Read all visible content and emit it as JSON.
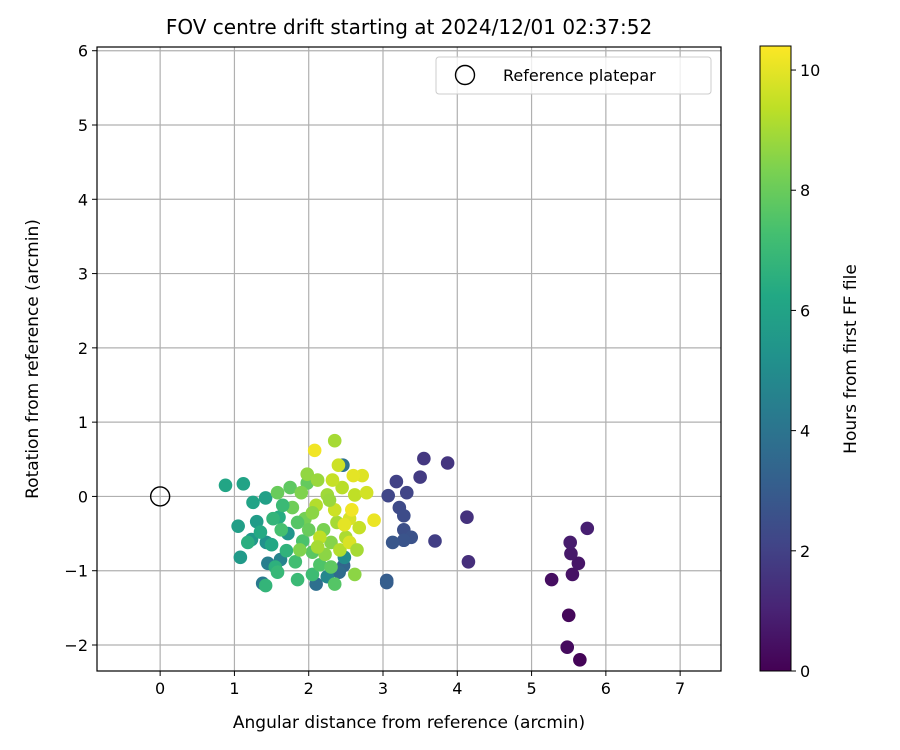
{
  "chart_data": {
    "type": "scatter",
    "title": "FOV centre drift starting at 2024/12/01 02:37:52",
    "xlabel": "Angular distance from reference (arcmin)",
    "ylabel": "Rotation from reference (arcmin)",
    "xlim": [
      -0.85,
      7.55
    ],
    "ylim": [
      -2.35,
      6.05
    ],
    "xticks": [
      0,
      1,
      2,
      3,
      4,
      5,
      6,
      7
    ],
    "yticks": [
      -2,
      -1,
      0,
      1,
      2,
      3,
      4,
      5,
      6
    ],
    "grid": true,
    "legend": {
      "position": "top-right",
      "entries": [
        "Reference platepar"
      ]
    },
    "reference_point": {
      "x": 0,
      "y": 0,
      "label": "Reference platepar"
    },
    "colorbar": {
      "label": "Hours from first FF file",
      "colormap": "viridis",
      "range": [
        0,
        10.4
      ],
      "ticks": [
        0,
        2,
        4,
        6,
        8,
        10
      ]
    },
    "points": [
      {
        "x": 5.5,
        "y": -1.6,
        "h": 0.2
      },
      {
        "x": 5.65,
        "y": -2.2,
        "h": 0.1
      },
      {
        "x": 5.48,
        "y": -2.03,
        "h": 0.3
      },
      {
        "x": 5.27,
        "y": -1.12,
        "h": 0.4
      },
      {
        "x": 5.55,
        "y": -1.05,
        "h": 0.5
      },
      {
        "x": 5.63,
        "y": -0.9,
        "h": 0.6
      },
      {
        "x": 5.53,
        "y": -0.77,
        "h": 0.7
      },
      {
        "x": 5.52,
        "y": -0.62,
        "h": 0.8
      },
      {
        "x": 5.75,
        "y": -0.43,
        "h": 0.9
      },
      {
        "x": 4.15,
        "y": -0.88,
        "h": 1.4
      },
      {
        "x": 4.13,
        "y": -0.28,
        "h": 1.5
      },
      {
        "x": 3.87,
        "y": 0.45,
        "h": 1.6
      },
      {
        "x": 3.55,
        "y": 0.51,
        "h": 1.7
      },
      {
        "x": 3.5,
        "y": 0.26,
        "h": 1.8
      },
      {
        "x": 3.7,
        "y": -0.6,
        "h": 1.9
      },
      {
        "x": 3.18,
        "y": 0.2,
        "h": 2.0
      },
      {
        "x": 3.32,
        "y": 0.05,
        "h": 2.1
      },
      {
        "x": 3.07,
        "y": 0.01,
        "h": 2.2
      },
      {
        "x": 3.22,
        "y": -0.15,
        "h": 2.3
      },
      {
        "x": 3.28,
        "y": -0.26,
        "h": 2.4
      },
      {
        "x": 3.28,
        "y": -0.45,
        "h": 2.5
      },
      {
        "x": 3.38,
        "y": -0.55,
        "h": 2.6
      },
      {
        "x": 3.28,
        "y": -0.59,
        "h": 2.7
      },
      {
        "x": 3.13,
        "y": -0.62,
        "h": 2.8
      },
      {
        "x": 3.05,
        "y": -1.13,
        "h": 3.0
      },
      {
        "x": 3.05,
        "y": -1.16,
        "h": 3.1
      },
      {
        "x": 2.47,
        "y": -0.93,
        "h": 3.4
      },
      {
        "x": 2.41,
        "y": -1.02,
        "h": 3.6
      },
      {
        "x": 2.1,
        "y": -1.18,
        "h": 3.8
      },
      {
        "x": 2.46,
        "y": 0.42,
        "h": 3.9
      },
      {
        "x": 1.38,
        "y": -1.17,
        "h": 4.2
      },
      {
        "x": 1.45,
        "y": -0.9,
        "h": 4.4
      },
      {
        "x": 1.62,
        "y": -0.85,
        "h": 4.6
      },
      {
        "x": 2.25,
        "y": -1.08,
        "h": 4.8
      },
      {
        "x": 2.48,
        "y": -0.82,
        "h": 5.0
      },
      {
        "x": 1.43,
        "y": -0.62,
        "h": 5.2
      },
      {
        "x": 1.72,
        "y": -0.5,
        "h": 5.4
      },
      {
        "x": 1.23,
        "y": -0.58,
        "h": 5.5
      },
      {
        "x": 1.08,
        "y": -0.82,
        "h": 5.6
      },
      {
        "x": 1.3,
        "y": -0.34,
        "h": 5.7
      },
      {
        "x": 1.05,
        "y": -0.4,
        "h": 5.8
      },
      {
        "x": 1.42,
        "y": -0.02,
        "h": 5.9
      },
      {
        "x": 1.25,
        "y": -0.08,
        "h": 6.0
      },
      {
        "x": 1.12,
        "y": 0.17,
        "h": 6.0
      },
      {
        "x": 0.88,
        "y": 0.15,
        "h": 6.1
      },
      {
        "x": 1.5,
        "y": -0.65,
        "h": 6.2
      },
      {
        "x": 1.35,
        "y": -0.48,
        "h": 6.3
      },
      {
        "x": 1.6,
        "y": -0.28,
        "h": 6.4
      },
      {
        "x": 1.18,
        "y": -0.62,
        "h": 6.5
      },
      {
        "x": 1.55,
        "y": -0.95,
        "h": 6.6
      },
      {
        "x": 1.7,
        "y": -0.73,
        "h": 6.7
      },
      {
        "x": 1.42,
        "y": -1.2,
        "h": 6.8
      },
      {
        "x": 1.58,
        "y": -1.02,
        "h": 6.9
      },
      {
        "x": 1.85,
        "y": -1.12,
        "h": 7.0
      },
      {
        "x": 2.05,
        "y": -1.05,
        "h": 7.1
      },
      {
        "x": 1.82,
        "y": -0.88,
        "h": 7.2
      },
      {
        "x": 1.63,
        "y": -0.45,
        "h": 7.3
      },
      {
        "x": 1.92,
        "y": -0.6,
        "h": 7.4
      },
      {
        "x": 2.15,
        "y": -0.92,
        "h": 7.5
      },
      {
        "x": 2.35,
        "y": -1.18,
        "h": 7.6
      },
      {
        "x": 2.05,
        "y": -0.75,
        "h": 7.7
      },
      {
        "x": 1.75,
        "y": 0.12,
        "h": 7.8
      },
      {
        "x": 1.98,
        "y": 0.18,
        "h": 7.9
      },
      {
        "x": 1.58,
        "y": 0.05,
        "h": 8.0
      },
      {
        "x": 1.78,
        "y": -0.15,
        "h": 8.1
      },
      {
        "x": 1.95,
        "y": -0.3,
        "h": 8.2
      },
      {
        "x": 2.2,
        "y": -0.45,
        "h": 8.3
      },
      {
        "x": 1.88,
        "y": -0.72,
        "h": 8.4
      },
      {
        "x": 2.3,
        "y": -0.62,
        "h": 8.5
      },
      {
        "x": 2.62,
        "y": -1.05,
        "h": 8.6
      },
      {
        "x": 1.98,
        "y": 0.3,
        "h": 8.7
      },
      {
        "x": 2.12,
        "y": 0.22,
        "h": 8.8
      },
      {
        "x": 2.25,
        "y": 0.02,
        "h": 8.9
      },
      {
        "x": 2.38,
        "y": -0.35,
        "h": 9.0
      },
      {
        "x": 2.5,
        "y": -0.55,
        "h": 9.1
      },
      {
        "x": 2.1,
        "y": -0.12,
        "h": 9.2
      },
      {
        "x": 2.45,
        "y": 0.12,
        "h": 9.3
      },
      {
        "x": 2.62,
        "y": 0.02,
        "h": 9.4
      },
      {
        "x": 2.68,
        "y": -0.42,
        "h": 9.5
      },
      {
        "x": 2.35,
        "y": -0.18,
        "h": 9.6
      },
      {
        "x": 2.78,
        "y": 0.05,
        "h": 9.7
      },
      {
        "x": 2.55,
        "y": -0.3,
        "h": 9.8
      },
      {
        "x": 2.72,
        "y": 0.28,
        "h": 9.9
      },
      {
        "x": 2.6,
        "y": 0.28,
        "h": 10.0
      },
      {
        "x": 2.88,
        "y": -0.32,
        "h": 10.1
      },
      {
        "x": 2.08,
        "y": 0.62,
        "h": 10.2
      },
      {
        "x": 2.35,
        "y": 0.75,
        "h": 9.0
      },
      {
        "x": 2.4,
        "y": 0.42,
        "h": 9.6
      },
      {
        "x": 2.28,
        "y": -0.05,
        "h": 8.8
      },
      {
        "x": 2.15,
        "y": -0.55,
        "h": 9.4
      },
      {
        "x": 2.42,
        "y": -0.72,
        "h": 9.2
      },
      {
        "x": 2.55,
        "y": -0.62,
        "h": 9.8
      },
      {
        "x": 2.22,
        "y": -0.78,
        "h": 8.6
      },
      {
        "x": 2.65,
        "y": -0.72,
        "h": 9.0
      },
      {
        "x": 2.0,
        "y": -0.45,
        "h": 8.0
      },
      {
        "x": 1.85,
        "y": -0.35,
        "h": 7.6
      },
      {
        "x": 1.65,
        "y": -0.12,
        "h": 7.0
      },
      {
        "x": 1.52,
        "y": -0.3,
        "h": 6.8
      },
      {
        "x": 2.3,
        "y": -0.95,
        "h": 7.8
      },
      {
        "x": 2.12,
        "y": -0.68,
        "h": 9.0
      },
      {
        "x": 2.48,
        "y": -0.38,
        "h": 10.0
      },
      {
        "x": 2.58,
        "y": -0.18,
        "h": 10.2
      },
      {
        "x": 2.32,
        "y": 0.22,
        "h": 9.5
      },
      {
        "x": 1.9,
        "y": 0.05,
        "h": 8.4
      },
      {
        "x": 2.05,
        "y": -0.22,
        "h": 8.6
      }
    ]
  }
}
